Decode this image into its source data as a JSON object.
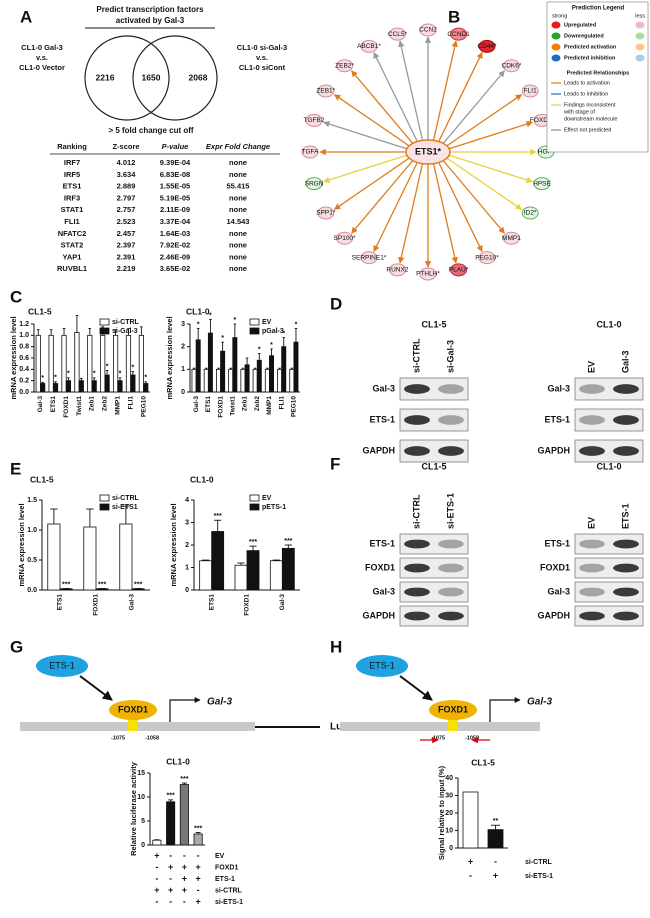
{
  "panel_letters": [
    "A",
    "B",
    "C",
    "D",
    "E",
    "F",
    "G",
    "H"
  ],
  "panel_a": {
    "title": [
      "Predict transcription factors",
      "activated by Gal-3"
    ],
    "left_label": [
      "CL1-0 Gal-3",
      "v.s.",
      "CL1-0 Vector"
    ],
    "right_label": [
      "CL1-0 si-Gal-3",
      "v.s.",
      "CL1-0 siCont"
    ],
    "venn": [
      2216,
      1650,
      2068
    ],
    "cutoff": "> 5 fold change cut off",
    "table": {
      "header": [
        "Ranking",
        "Z-score",
        "P-value",
        "Expr Fold Change"
      ],
      "rows": [
        [
          "IRF7",
          4.012,
          "9.39E-04",
          "none"
        ],
        [
          "IRF5",
          3.634,
          "6.83E-08",
          "none"
        ],
        [
          "ETS1",
          2.889,
          "1.55E-05",
          55.415
        ],
        [
          "IRF3",
          2.797,
          "5.19E-05",
          "none"
        ],
        [
          "STAT1",
          2.757,
          "2.11E-09",
          "none"
        ],
        [
          "FLI1",
          2.523,
          "3.37E-04",
          14.543
        ],
        [
          "NFATC2",
          2.457,
          "1.64E-03",
          "none"
        ],
        [
          "STAT2",
          2.397,
          "7.92E-02",
          "none"
        ],
        [
          "YAP1",
          2.391,
          "2.46E-09",
          "none"
        ],
        [
          "RUVBL1",
          2.219,
          "3.65E-02",
          "none"
        ]
      ]
    }
  },
  "panel_b": {
    "center": "ETS1*",
    "nodes": [
      {
        "label": "CCN2",
        "fill": "#f6dde1",
        "stroke": "#d88a96",
        "edge": "#999999"
      },
      {
        "label": "CCND1",
        "fill": "#f08a94",
        "stroke": "#c0303c",
        "edge": "#e07b1a"
      },
      {
        "label": "CD44*",
        "fill": "#e3262e",
        "stroke": "#a01018",
        "edge": "#e07b1a"
      },
      {
        "label": "CDK6*",
        "fill": "#f6dde1",
        "stroke": "#d88a96",
        "edge": "#999999"
      },
      {
        "label": "FLI1",
        "fill": "#f6dde1",
        "stroke": "#d88a96",
        "edge": "#e07b1a"
      },
      {
        "label": "FOXD1*",
        "fill": "#f6dde1",
        "stroke": "#d88a96",
        "edge": "#e07b1a"
      },
      {
        "label": "HGF*",
        "fill": "#e3f6e3",
        "stroke": "#5cae5c",
        "edge": "#e8d23a"
      },
      {
        "label": "HPSE",
        "fill": "#e3f6e3",
        "stroke": "#5cae5c",
        "edge": "#e8d23a"
      },
      {
        "label": "ID2*",
        "fill": "#e3f6e3",
        "stroke": "#5cae5c",
        "edge": "#e8d23a"
      },
      {
        "label": "MMP1",
        "fill": "#f6dde1",
        "stroke": "#d88a96",
        "edge": "#e07b1a"
      },
      {
        "label": "PEG10*",
        "fill": "#f6dde1",
        "stroke": "#d88a96",
        "edge": "#e07b1a"
      },
      {
        "label": "PLAU*",
        "fill": "#e46a78",
        "stroke": "#b03040",
        "edge": "#e07b1a"
      },
      {
        "label": "PTHLH*",
        "fill": "#f6dde1",
        "stroke": "#d88a96",
        "edge": "#e07b1a"
      },
      {
        "label": "RUNX2",
        "fill": "#f6dde1",
        "stroke": "#d88a96",
        "edge": "#e07b1a"
      },
      {
        "label": "SERPINE1*",
        "fill": "#f6dde1",
        "stroke": "#d88a96",
        "edge": "#e07b1a"
      },
      {
        "label": "SP100*",
        "fill": "#f6dde1",
        "stroke": "#d88a96",
        "edge": "#e07b1a"
      },
      {
        "label": "SPP1*",
        "fill": "#f6dde1",
        "stroke": "#d88a96",
        "edge": "#e07b1a"
      },
      {
        "label": "SRGN",
        "fill": "#e3f6e3",
        "stroke": "#5cae5c",
        "edge": "#e8d23a"
      },
      {
        "label": "TGFA",
        "fill": "#f6dde1",
        "stroke": "#d88a96",
        "edge": "#e07b1a"
      },
      {
        "label": "TGFB2",
        "fill": "#f6dde1",
        "stroke": "#d88a96",
        "edge": "#999999"
      },
      {
        "label": "ZEB1*",
        "fill": "#f6dde1",
        "stroke": "#d88a96",
        "edge": "#e07b1a"
      },
      {
        "label": "ZEB2*",
        "fill": "#f6dde1",
        "stroke": "#d88a96",
        "edge": "#e07b1a"
      },
      {
        "label": "ABCB1*",
        "fill": "#f6dde1",
        "stroke": "#d88a96",
        "edge": "#999999"
      },
      {
        "label": "CCL5*",
        "fill": "#f6dde1",
        "stroke": "#d88a96",
        "edge": "#999999"
      }
    ],
    "legend": {
      "title": "Prediction Legend",
      "strong": "strong",
      "less": "less",
      "nodes": [
        {
          "label": "Upregulated",
          "strong_color": "#e31a1c",
          "less_color": "#f4b6bf"
        },
        {
          "label": "Downregulated",
          "strong_color": "#2ca02c",
          "less_color": "#a8e0a0"
        },
        {
          "label": "Predicted activation",
          "strong_color": "#f07f00",
          "less_color": "#f8c98a"
        },
        {
          "label": "Predicted inhibition",
          "strong_color": "#1f6fc0",
          "less_color": "#a8cdef"
        }
      ],
      "relationships_title": "Predicted Relationships",
      "relationships": [
        {
          "lines": [
            "Leads to activation"
          ],
          "color": "#f07f00"
        },
        {
          "lines": [
            "Leads to inhibition"
          ],
          "color": "#1f6fc0"
        },
        {
          "lines": [
            "Findings inconsistent",
            "with stage of",
            "downstream molecule"
          ],
          "color": "#e8d23a"
        },
        {
          "lines": [
            "Effect not predicted"
          ],
          "color": "#888888"
        }
      ]
    }
  },
  "chart_data": [
    {
      "type": "bar",
      "title": "CL1-5",
      "ylabel": "mRNA expression level",
      "legend": "upper right",
      "categories": [
        "Gal-3",
        "ETS1",
        "FOXD1",
        "Twist1",
        "Zeb1",
        "Zeb2",
        "MMP1",
        "FLI1",
        "PEG10"
      ],
      "series": [
        {
          "name": "si-CTRL",
          "color": "#ffffff",
          "values": [
            1.0,
            1.0,
            1.0,
            1.05,
            1.0,
            1.0,
            1.0,
            1.0,
            1.0
          ],
          "errors": [
            0.1,
            0.1,
            0.12,
            0.3,
            0.12,
            0.15,
            0.1,
            0.12,
            0.15
          ]
        },
        {
          "name": "si-Gal-3",
          "color": "#111111",
          "values": [
            0.15,
            0.15,
            0.2,
            0.2,
            0.2,
            0.3,
            0.2,
            0.3,
            0.15
          ],
          "errors": [
            0.02,
            0.03,
            0.05,
            0.04,
            0.05,
            0.08,
            0.05,
            0.06,
            0.03
          ],
          "stars": [
            "*",
            "*",
            "*",
            null,
            "*",
            "*",
            "*",
            "*",
            "*"
          ]
        }
      ],
      "ylim": [
        0,
        1.2
      ],
      "yticks": [
        {
          "value": 0,
          "label": "0.0"
        },
        0.2,
        0.4,
        0.6,
        0.8,
        {
          "value": 1,
          "label": "1.0"
        },
        1.2
      ]
    },
    {
      "type": "bar",
      "title": "CL1-0",
      "ylabel": "mRNA expression level",
      "legend": "upper right",
      "categories": [
        "Gal-3",
        "ETS1",
        "FOXD1",
        "Twist1",
        "Zeb1",
        "Zeb2",
        "MMP1",
        "FLI1",
        "PEG10"
      ],
      "series": [
        {
          "name": "EV",
          "color": "#ffffff",
          "values": [
            1.0,
            1.0,
            1.0,
            1.0,
            1.0,
            1.0,
            1.0,
            1.0,
            1.0
          ],
          "errors": [
            0.05,
            0.05,
            0.05,
            0.05,
            0.05,
            0.05,
            0.05,
            0.05,
            0.05
          ]
        },
        {
          "name": "pGal-3",
          "color": "#111111",
          "values": [
            2.3,
            2.6,
            1.8,
            2.4,
            1.2,
            1.4,
            1.6,
            2.0,
            2.2
          ],
          "errors": [
            0.5,
            0.6,
            0.4,
            0.6,
            0.3,
            0.3,
            0.3,
            0.4,
            0.6
          ],
          "stars": [
            "*",
            "*",
            "*",
            "*",
            null,
            "*",
            "*",
            "*",
            "*"
          ]
        }
      ],
      "ylim": [
        0,
        3
      ],
      "yticks": [
        0,
        1,
        2,
        3
      ]
    },
    {
      "type": "bar",
      "title": "CL1-5",
      "ylabel": "mRNA expression level",
      "legend": "upper right",
      "categories": [
        "ETS1",
        "FOXD1",
        "Gal-3"
      ],
      "series": [
        {
          "name": "si-CTRL",
          "color": "#ffffff",
          "values": [
            1.1,
            1.05,
            1.1
          ],
          "errors": [
            0.25,
            0.3,
            0.3
          ]
        },
        {
          "name": "si-ETS1",
          "color": "#111111",
          "values": [
            0.02,
            0.02,
            0.02
          ],
          "errors": [
            0.005,
            0.005,
            0.005
          ],
          "stars": [
            "***",
            "***",
            "***"
          ]
        }
      ],
      "ylim": [
        0,
        1.5
      ],
      "yticks": [
        {
          "value": 0,
          "label": "0.0"
        },
        0.5,
        {
          "value": 1,
          "label": "1.0"
        },
        1.5
      ]
    },
    {
      "type": "bar",
      "title": "CL1-0",
      "ylabel": "mRNA expression level",
      "legend": "upper right",
      "categories": [
        "ETS1",
        "FOXD1",
        "Gal-3"
      ],
      "series": [
        {
          "name": "EV",
          "color": "#ffffff",
          "values": [
            1.3,
            1.1,
            1.3
          ],
          "errors": [
            0.03,
            0.1,
            0.03
          ]
        },
        {
          "name": "pETS-1",
          "color": "#111111",
          "values": [
            2.6,
            1.75,
            1.85
          ],
          "errors": [
            0.5,
            0.2,
            0.15
          ],
          "stars": [
            "***",
            "***",
            "***"
          ]
        }
      ],
      "ylim": [
        0,
        4
      ],
      "yticks": [
        0,
        1,
        2,
        3,
        4
      ]
    },
    {
      "type": "bar",
      "title": "CL1-0",
      "ylabel": "Relative luciferase activity",
      "categories": [
        null,
        null,
        null,
        null
      ],
      "series": [
        {
          "colors": [
            "#ffffff",
            "#111111",
            "#777777",
            "#aaaaaa"
          ],
          "values": [
            1.0,
            9.0,
            12.6,
            2.3
          ],
          "errors": [
            0.1,
            0.4,
            0.3,
            0.3
          ],
          "stars": [
            null,
            "***",
            "***",
            "***"
          ]
        }
      ],
      "ylim": [
        0,
        15
      ],
      "yticks": [
        0,
        5,
        10,
        15
      ]
    },
    {
      "type": "bar",
      "title": "CL1-5",
      "ylabel": "Signal relative to input (%)",
      "categories": [
        null,
        null
      ],
      "series": [
        {
          "colors": [
            "#ffffff",
            "#111111"
          ],
          "values": [
            32,
            10.5
          ],
          "errors": [
            null,
            2.5
          ],
          "stars": [
            null,
            "**"
          ]
        }
      ],
      "ylim": [
        0,
        40
      ],
      "yticks": [
        0,
        10,
        20,
        30,
        40
      ]
    }
  ],
  "blots": [
    {
      "title": "CL1-5",
      "lanes": [
        "si-CTRL",
        "si-Gal-3"
      ],
      "proteins": [
        "Gal-3",
        "ETS-1",
        "GAPDH"
      ]
    },
    {
      "title": "CL1-0",
      "lanes": [
        "EV",
        "Gal-3"
      ],
      "proteins": [
        "Gal-3",
        "ETS-1",
        "GAPDH"
      ]
    },
    {
      "title": "CL1-5",
      "lanes": [
        "si-CTRL",
        "si-ETS-1"
      ],
      "proteins": [
        "ETS-1",
        "FOXD1",
        "Gal-3",
        "GAPDH"
      ]
    },
    {
      "title": "CL1-0",
      "lanes": [
        "EV",
        "ETS-1"
      ],
      "proteins": [
        "ETS-1",
        "FOXD1",
        "Gal-3",
        "GAPDH"
      ]
    }
  ],
  "diagrams": [
    {
      "activator": "ETS-1",
      "factor": "FOXD1",
      "gene": "Gal-3",
      "start": "-1075",
      "end": "-1058",
      "reporter": "Luc"
    },
    {
      "activator": "ETS-1",
      "factor": "FOXD1",
      "gene": "Gal-3",
      "start": "-1075",
      "end": "-1058"
    }
  ],
  "treatments": [
    {
      "rows": [
        {
          "label": "EV",
          "signs": [
            "+",
            "-",
            "-",
            "-"
          ]
        },
        {
          "label": "FOXD1",
          "signs": [
            "-",
            "+",
            "+",
            "+"
          ]
        },
        {
          "label": "ETS-1",
          "signs": [
            "-",
            "-",
            "+",
            "+"
          ]
        },
        {
          "label": "si-CTRL",
          "signs": [
            "+",
            "+",
            "+",
            "-"
          ]
        },
        {
          "label": "si-ETS-1",
          "signs": [
            "-",
            "-",
            "-",
            "+"
          ]
        }
      ]
    },
    {
      "rows": [
        {
          "label": "si-CTRL",
          "signs": [
            "+",
            "-"
          ]
        },
        {
          "label": "si-ETS-1",
          "signs": [
            "-",
            "+"
          ]
        }
      ]
    }
  ]
}
